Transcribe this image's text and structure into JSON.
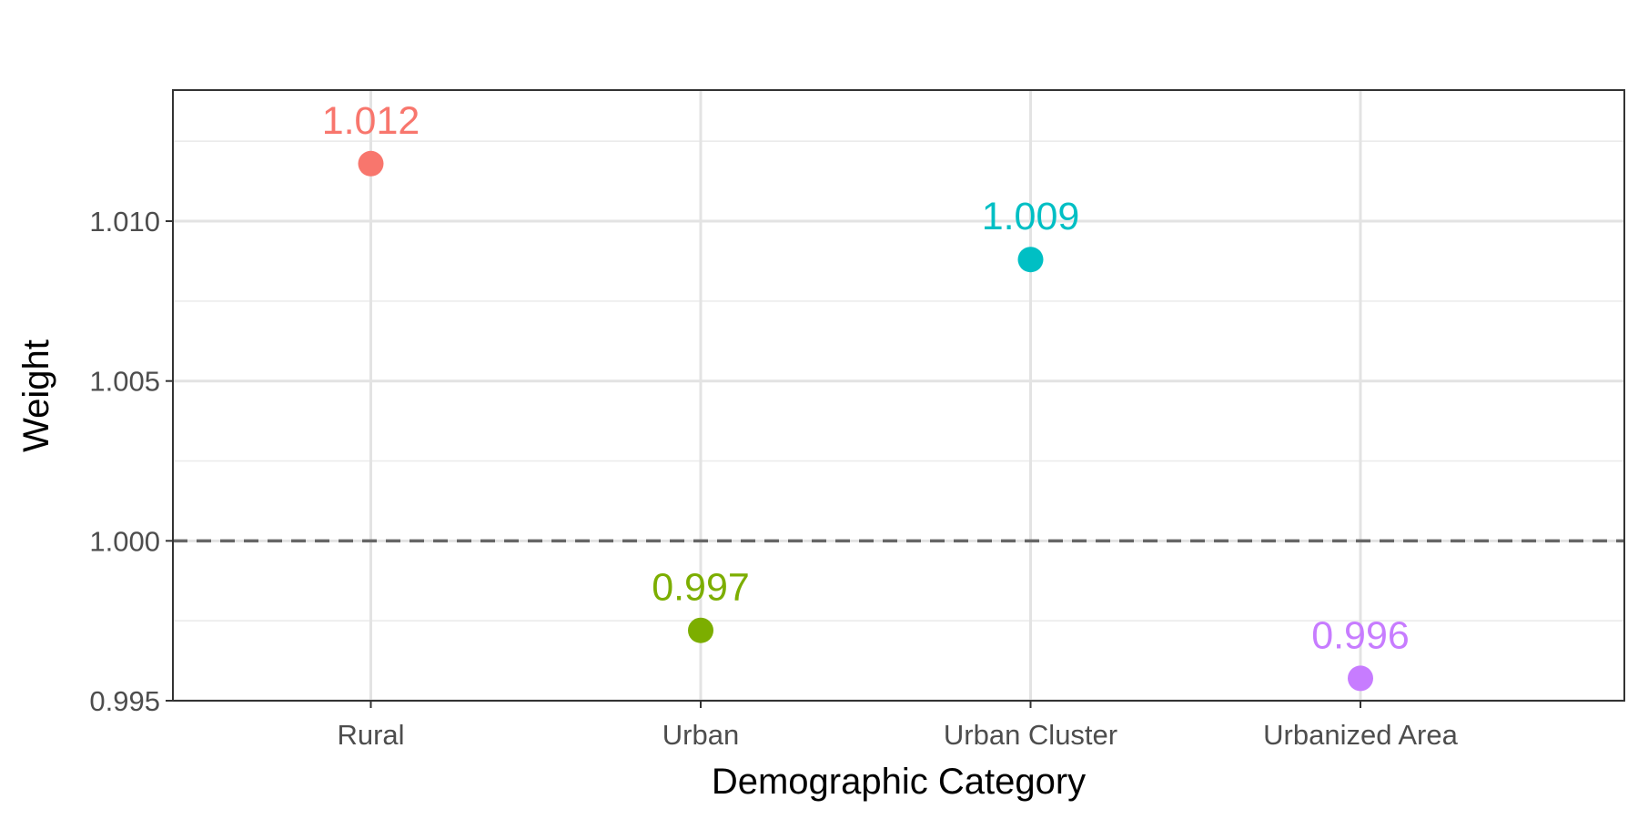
{
  "chart_data": {
    "type": "scatter",
    "title": "",
    "xlabel": "Demographic Category",
    "ylabel": "Weight",
    "categories": [
      "Rural",
      "Urban",
      "Urban Cluster",
      "Urbanized Area"
    ],
    "values": [
      1.0118,
      0.9972,
      1.0088,
      0.9957
    ],
    "data_labels": [
      "1.012",
      "0.997",
      "1.009",
      "0.996"
    ],
    "colors": [
      "#F8766D",
      "#7CAE00",
      "#00BFC4",
      "#C77CFF"
    ],
    "ylim": [
      0.995,
      1.0141
    ],
    "yticks": [
      0.995,
      1.0,
      1.005,
      1.01
    ],
    "ytick_labels": [
      "0.995",
      "1.000",
      "1.005",
      "1.010"
    ],
    "reference_line": {
      "y": 1.0,
      "style": "dashed",
      "color": "#666666"
    },
    "grid": true,
    "legend": "none"
  }
}
